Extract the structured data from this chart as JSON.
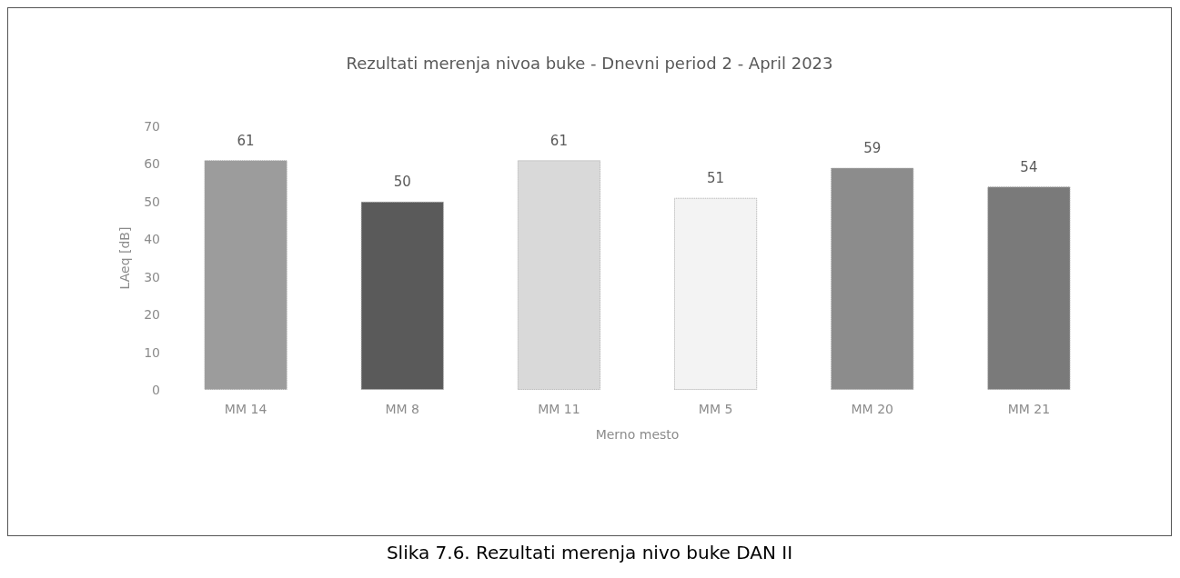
{
  "chart_data": {
    "type": "bar",
    "title": "Rezultati merenja nivoa buke - Dnevni period 2 - April 2023",
    "xlabel": "Merno mesto",
    "ylabel": "LAeq [dB]",
    "categories": [
      "MM 14",
      "MM 8",
      "MM 11",
      "MM 5",
      "MM 20",
      "MM 21"
    ],
    "values": [
      61,
      50,
      61,
      51,
      59,
      54
    ],
    "colors": [
      "#9c9c9c",
      "#5a5a5a",
      "#d9d9d9",
      "#f3f3f3",
      "#8c8c8c",
      "#7a7a7a"
    ],
    "ylim": [
      0,
      70
    ],
    "yticks": [
      0,
      10,
      20,
      30,
      40,
      50,
      60,
      70
    ],
    "grid": false,
    "data_labels": true,
    "annotations": [
      "Slika 7.6. Rezultati merenja nivo buke DAN II"
    ]
  }
}
